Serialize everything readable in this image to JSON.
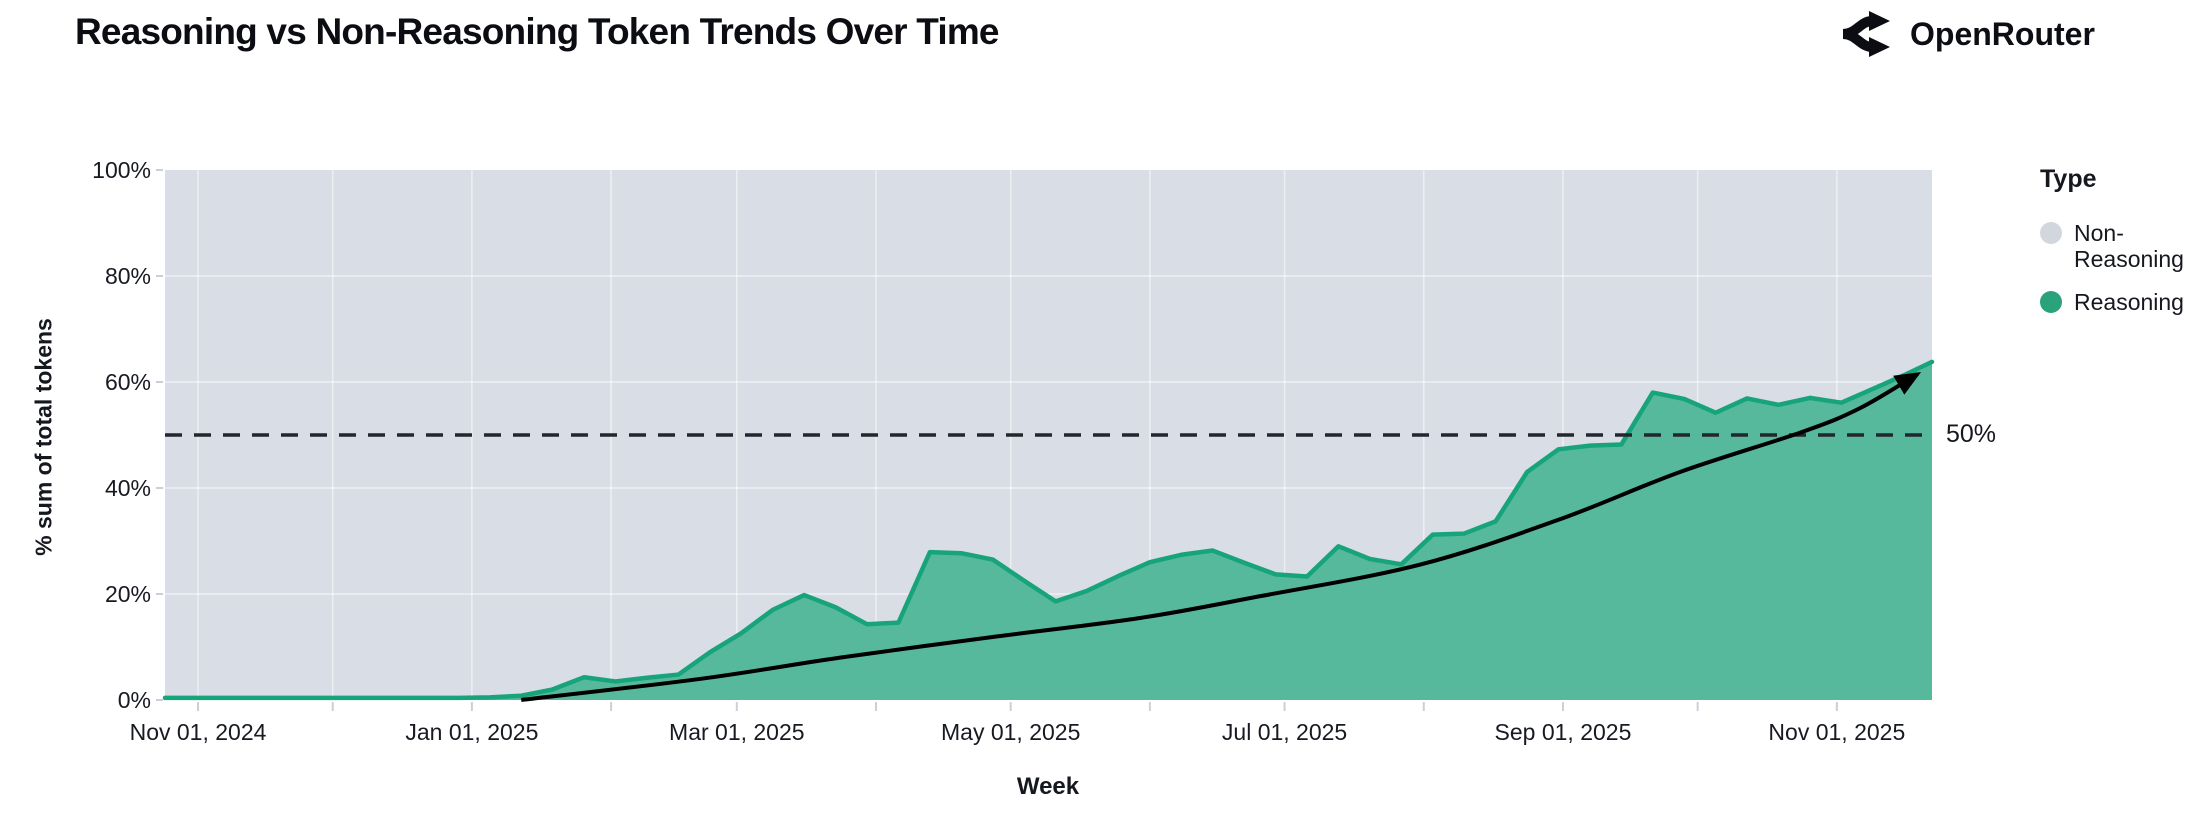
{
  "header": {
    "title": "Reasoning vs Non-Reasoning Token Trends Over Time",
    "brand": "OpenRouter"
  },
  "legend": {
    "title": "Type",
    "items": [
      {
        "label": "Non-Reasoning",
        "color": "#d2d6dd"
      },
      {
        "label": "Reasoning",
        "color": "#2aa37c"
      }
    ]
  },
  "chart_data": {
    "type": "area",
    "stacked": true,
    "percent_stacked": true,
    "title": "Reasoning vs Non-Reasoning Token Trends Over Time",
    "xlabel": "Week",
    "ylabel": "% sum of total tokens",
    "ylim": [
      0,
      100
    ],
    "grid": true,
    "legend_position": "right",
    "plot_background": "#d9dde5",
    "y_ticks": [
      {
        "value": 0,
        "label": "0%"
      },
      {
        "value": 20,
        "label": "20%"
      },
      {
        "value": 40,
        "label": "40%"
      },
      {
        "value": 60,
        "label": "60%"
      },
      {
        "value": 80,
        "label": "80%"
      },
      {
        "value": 100,
        "label": "100%"
      }
    ],
    "x_ticks": [
      {
        "date": "2024-11-01",
        "label": "Nov 01, 2024"
      },
      {
        "date": "2024-12-01",
        "label": ""
      },
      {
        "date": "2025-01-01",
        "label": "Jan 01, 2025"
      },
      {
        "date": "2025-02-01",
        "label": ""
      },
      {
        "date": "2025-03-01",
        "label": "Mar 01, 2025"
      },
      {
        "date": "2025-04-01",
        "label": ""
      },
      {
        "date": "2025-05-01",
        "label": "May 01, 2025"
      },
      {
        "date": "2025-06-01",
        "label": ""
      },
      {
        "date": "2025-07-01",
        "label": "Jul 01, 2025"
      },
      {
        "date": "2025-08-01",
        "label": ""
      },
      {
        "date": "2025-09-01",
        "label": "Sep 01, 2025"
      },
      {
        "date": "2025-10-01",
        "label": ""
      },
      {
        "date": "2025-11-01",
        "label": "Nov 01, 2025"
      }
    ],
    "weeks": [
      "2024-10-27",
      "2024-11-03",
      "2024-11-10",
      "2024-11-17",
      "2024-11-24",
      "2024-12-01",
      "2024-12-08",
      "2024-12-15",
      "2024-12-22",
      "2024-12-29",
      "2025-01-05",
      "2025-01-12",
      "2025-01-19",
      "2025-01-26",
      "2025-02-02",
      "2025-02-09",
      "2025-02-16",
      "2025-02-23",
      "2025-03-02",
      "2025-03-09",
      "2025-03-16",
      "2025-03-23",
      "2025-03-30",
      "2025-04-06",
      "2025-04-13",
      "2025-04-20",
      "2025-04-27",
      "2025-05-04",
      "2025-05-11",
      "2025-05-18",
      "2025-05-25",
      "2025-06-01",
      "2025-06-08",
      "2025-06-15",
      "2025-06-22",
      "2025-06-29",
      "2025-07-06",
      "2025-07-13",
      "2025-07-20",
      "2025-07-27",
      "2025-08-03",
      "2025-08-10",
      "2025-08-17",
      "2025-08-24",
      "2025-08-31",
      "2025-09-07",
      "2025-09-14",
      "2025-09-21",
      "2025-09-28",
      "2025-10-05",
      "2025-10-12",
      "2025-10-19",
      "2025-10-26",
      "2025-11-02",
      "2025-11-09",
      "2025-11-16",
      "2025-11-23"
    ],
    "series": [
      {
        "name": "Reasoning",
        "fill": "#57b99c",
        "edge": "#17a47b",
        "values": [
          0.4,
          0.4,
          0.4,
          0.4,
          0.4,
          0.4,
          0.4,
          0.4,
          0.4,
          0.4,
          0.5,
          0.8,
          2.0,
          4.3,
          3.5,
          4.2,
          4.8,
          9.0,
          12.6,
          17.0,
          19.8,
          17.5,
          14.3,
          14.6,
          27.9,
          27.7,
          26.5,
          22.5,
          18.6,
          20.6,
          23.4,
          26.0,
          27.4,
          28.2,
          25.9,
          23.7,
          23.3,
          29.0,
          26.6,
          25.6,
          31.2,
          31.4,
          33.7,
          43.0,
          47.3,
          48.0,
          48.2,
          58.0,
          56.8,
          54.2,
          56.9,
          55.7,
          57.0,
          56.1,
          58.7,
          61.3,
          63.8
        ]
      },
      {
        "name": "Non-Reasoning",
        "fill": "#d9dde5",
        "remainder_to_100": true
      }
    ],
    "reference_line": {
      "value": 50,
      "label": "50%",
      "style": "dashed",
      "color": "#23262e"
    },
    "trend_arrow": {
      "color": "#000000",
      "points": [
        [
          "2025-01-12",
          0
        ],
        [
          "2025-02-21",
          4
        ],
        [
          "2025-03-24",
          8
        ],
        [
          "2025-04-28",
          12
        ],
        [
          "2025-05-30",
          15.5
        ],
        [
          "2025-06-25",
          19.5
        ],
        [
          "2025-07-31",
          25.5
        ],
        [
          "2025-08-31",
          34
        ],
        [
          "2025-09-27",
          43
        ],
        [
          "2025-10-24",
          50.5
        ],
        [
          "2025-11-06",
          55
        ],
        [
          "2025-11-19",
          61.5
        ]
      ]
    }
  }
}
